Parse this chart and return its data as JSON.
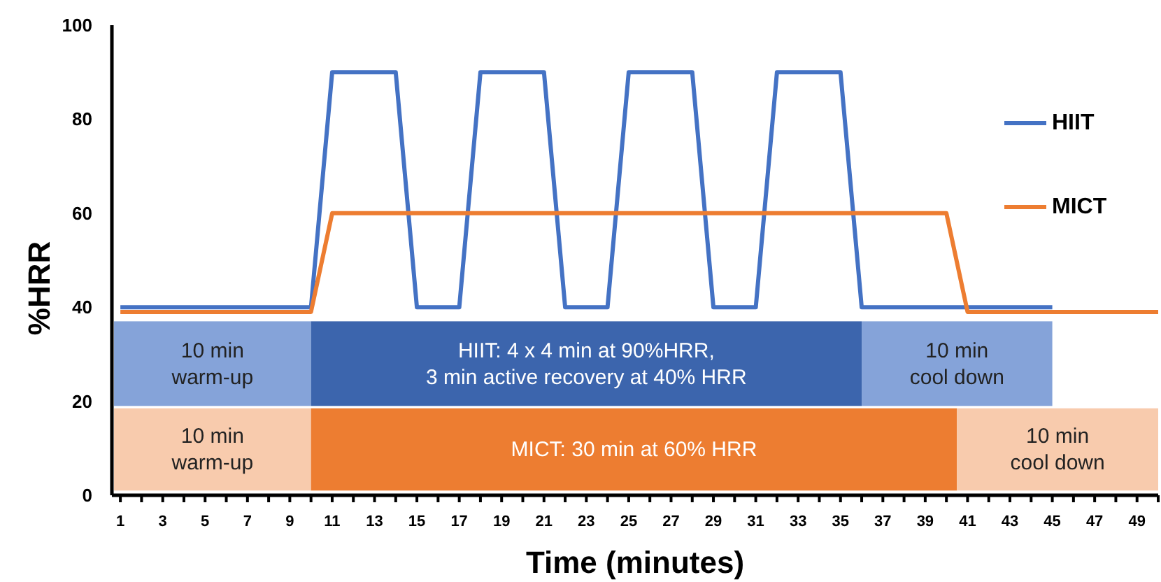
{
  "chart_data": {
    "type": "line",
    "xlabel": "Time (minutes)",
    "ylabel": "%HRR",
    "xlim": [
      0.6,
      50
    ],
    "ylim": [
      0,
      100
    ],
    "xticks": [
      1,
      {
        "value": 2,
        "label": null
      },
      3,
      {
        "value": 4,
        "label": null
      },
      5,
      {
        "value": 6,
        "label": null
      },
      7,
      {
        "value": 8,
        "label": null
      },
      9,
      {
        "value": 10,
        "label": null
      },
      11,
      {
        "value": 12,
        "label": null
      },
      13,
      {
        "value": 14,
        "label": null
      },
      15,
      {
        "value": 16,
        "label": null
      },
      17,
      {
        "value": 18,
        "label": null
      },
      19,
      {
        "value": 20,
        "label": null
      },
      21,
      {
        "value": 22,
        "label": null
      },
      23,
      {
        "value": 24,
        "label": null
      },
      25,
      {
        "value": 26,
        "label": null
      },
      27,
      {
        "value": 28,
        "label": null
      },
      29,
      {
        "value": 30,
        "label": null
      },
      31,
      {
        "value": 32,
        "label": null
      },
      33,
      {
        "value": 34,
        "label": null
      },
      35,
      {
        "value": 36,
        "label": null
      },
      37,
      {
        "value": 38,
        "label": null
      },
      39,
      {
        "value": 40,
        "label": null
      },
      41,
      {
        "value": 42,
        "label": null
      },
      43,
      {
        "value": 44,
        "label": null
      },
      45,
      {
        "value": 46,
        "label": null
      },
      47,
      {
        "value": 48,
        "label": null
      },
      49,
      {
        "value": 50,
        "label": null
      }
    ],
    "yticks": [
      0,
      20,
      40,
      60,
      80,
      100
    ],
    "grid": false,
    "legend": "right",
    "marker": "none",
    "line_style": "solid",
    "series": [
      {
        "name": "HIIT",
        "color": "#4472c4",
        "x": [
          1,
          10,
          11,
          14,
          15,
          17,
          18,
          21,
          22,
          24,
          25,
          28,
          29,
          31,
          32,
          35,
          36,
          45
        ],
        "values": [
          40,
          40,
          90,
          90,
          40,
          40,
          90,
          90,
          40,
          40,
          90,
          90,
          40,
          40,
          90,
          90,
          40,
          40
        ]
      },
      {
        "name": "MICT",
        "color": "#ed7d31",
        "x": [
          1,
          10,
          11,
          40,
          41,
          50
        ],
        "values": [
          39,
          39,
          60,
          60,
          39,
          39
        ]
      }
    ],
    "annotations": [
      "10 min\nwarm-up",
      "HIIT: 4 x 4 min at 90%HRR,\n3 min active recovery at 40% HRR",
      "10 min\ncool down",
      "10 min\nwarm-up",
      "MICT: 30 min at 60% HRR",
      "10 min\ncool down"
    ]
  }
}
